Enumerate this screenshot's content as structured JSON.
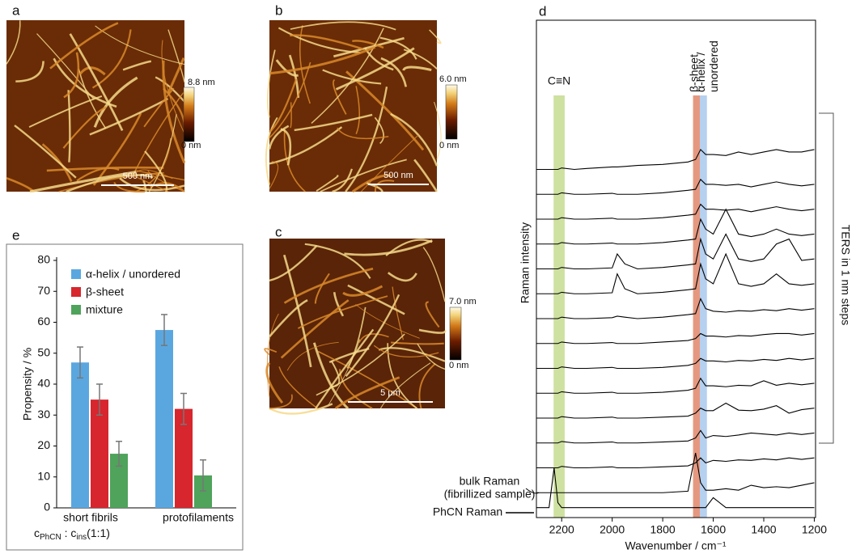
{
  "images": [
    {
      "panel_label": "a",
      "scale_bar": "500 nm",
      "colorbar_max": "8.8 nm",
      "colorbar_min": "0 nm"
    },
    {
      "panel_label": "b",
      "scale_bar": "500 nm",
      "colorbar_max": "6.0 nm",
      "colorbar_min": "0 nm"
    },
    {
      "panel_label": "c",
      "scale_bar": "5 μm",
      "colorbar_max": "7.0 nm",
      "colorbar_min": "0 nm"
    }
  ],
  "chart_data": [
    {
      "type": "bar",
      "panel_label": "e",
      "ylabel": "Propensity / %",
      "categories": [
        "short fibrils",
        "protofilaments"
      ],
      "category_note": [
        "c",
        "PhCN",
        " : c",
        "ins",
        "(1:1)"
      ],
      "ylim": [
        0,
        80
      ],
      "yticks": [
        0,
        10,
        20,
        30,
        40,
        50,
        60,
        70,
        80
      ],
      "series": [
        {
          "name": "α-helix / unordered",
          "color": "#5aa7e0",
          "values": [
            47,
            57.5
          ],
          "errors": [
            5,
            5
          ]
        },
        {
          "name": "β-sheet",
          "color": "#d7262d",
          "values": [
            35,
            32
          ],
          "errors": [
            5,
            5
          ]
        },
        {
          "name": "mixture",
          "color": "#4fa35b",
          "values": [
            17.5,
            10.5
          ],
          "errors": [
            4,
            5
          ]
        }
      ]
    },
    {
      "type": "line",
      "panel_label": "d",
      "xlabel": "Wavenumber / cm⁻¹",
      "ylabel": "Raman intensity",
      "bracket_label": "TERS in 1 nm steps",
      "xlim": [
        2300,
        1195
      ],
      "xticks": [
        2200,
        2000,
        1800,
        1600,
        1400,
        1200
      ],
      "ylim": [
        0,
        100
      ],
      "bands": [
        {
          "label": [
            "C≡N"
          ],
          "from": 2232,
          "to": 2188,
          "color": "#c5dc8f"
        },
        {
          "label": [
            "β-sheet"
          ],
          "from": 1680,
          "to": 1653,
          "color": "#e0866a"
        },
        {
          "label": [
            "α-helix /",
            "unordered"
          ],
          "from": 1653,
          "to": 1625,
          "color": "#a9c8ec"
        }
      ],
      "x": [
        2300,
        2250,
        2230,
        2215,
        2200,
        2150,
        2100,
        2000,
        1980,
        1950,
        1900,
        1800,
        1700,
        1670,
        1650,
        1630,
        1600,
        1550,
        1500,
        1450,
        1400,
        1350,
        1300,
        1250,
        1200
      ],
      "series": [
        {
          "name": "PhCN Raman",
          "color": "#000000",
          "values": [
            2,
            2,
            10,
            3,
            2,
            2,
            2,
            2,
            2,
            2,
            2,
            2,
            2,
            2,
            2,
            2,
            4,
            2,
            2,
            2,
            2,
            2,
            2,
            2,
            2
          ]
        },
        {
          "name": "bulk Raman",
          "note": "(fibrillized sample)",
          "color": "#000000",
          "values": [
            5,
            5,
            5,
            5,
            5,
            5,
            5,
            5,
            5,
            5,
            5,
            5,
            5.3,
            13,
            7,
            5.5,
            5.5,
            5.8,
            5.5,
            6.5,
            6,
            6.2,
            6,
            6.5,
            7
          ]
        },
        {
          "color": "#000000",
          "values": [
            10,
            10,
            10,
            10,
            10.3,
            10,
            10,
            10.2,
            10,
            10,
            10,
            10.2,
            10.4,
            11,
            12,
            11,
            11.5,
            11.3,
            11.6,
            11.5,
            11.8,
            11.6,
            12,
            11.7,
            12
          ]
        },
        {
          "color": "#000000",
          "values": [
            15,
            15,
            15,
            15,
            15.3,
            15,
            15,
            15.2,
            15,
            15,
            15,
            15.2,
            15.4,
            16,
            17.5,
            16,
            16.5,
            16.3,
            16.6,
            17,
            16.8,
            16.6,
            17,
            16.7,
            17
          ]
        },
        {
          "color": "#000000",
          "values": [
            20,
            20,
            20,
            20,
            20.3,
            20,
            20,
            20.2,
            20,
            20,
            20,
            20.2,
            20.4,
            21,
            22,
            21.5,
            21.5,
            23,
            21.6,
            21.5,
            21.8,
            22.5,
            21,
            21.7,
            22
          ]
        },
        {
          "color": "#000000",
          "values": [
            25,
            25,
            25,
            25,
            25.3,
            25,
            25,
            25.2,
            25,
            25,
            25,
            25.2,
            25.6,
            26,
            28,
            26.5,
            26.5,
            26.3,
            26.6,
            26.5,
            27.5,
            26.6,
            27,
            26.7,
            27
          ]
        },
        {
          "color": "#000000",
          "values": [
            30,
            30,
            30,
            30,
            30.3,
            30,
            30,
            30.2,
            30,
            30,
            30,
            30.2,
            30.6,
            31,
            32,
            31.5,
            31.5,
            31.3,
            31.6,
            31.5,
            31.8,
            31.6,
            32,
            31.7,
            32
          ]
        },
        {
          "color": "#000000",
          "values": [
            35,
            35,
            35,
            35,
            35.3,
            35,
            35,
            35.2,
            35,
            35,
            35,
            35.3,
            35.6,
            36,
            37,
            36.5,
            36.5,
            36.3,
            36.6,
            36.5,
            36.8,
            37,
            37,
            36.7,
            37
          ]
        },
        {
          "color": "#000000",
          "values": [
            40,
            40,
            40,
            40,
            40.3,
            40,
            40,
            40.2,
            40.5,
            40.3,
            40,
            40.3,
            40.8,
            41,
            44,
            42,
            41.5,
            41.3,
            41.6,
            41.5,
            41.8,
            41.6,
            42,
            41.7,
            42
          ]
        },
        {
          "color": "#000000",
          "values": [
            45,
            45,
            45,
            45,
            45.3,
            45,
            45,
            45.2,
            49,
            46,
            45,
            45.3,
            45.8,
            46,
            51,
            48,
            47,
            53,
            47,
            46.5,
            47,
            49,
            47,
            46.7,
            47
          ]
        },
        {
          "color": "#000000",
          "values": [
            50,
            50,
            50,
            50,
            50.3,
            50,
            50,
            50.2,
            53,
            51,
            50,
            50.3,
            50.8,
            51,
            56,
            53,
            52,
            57,
            52,
            51.5,
            52,
            55,
            56,
            51.7,
            52
          ]
        },
        {
          "color": "#000000",
          "values": [
            55,
            55,
            55,
            55,
            55.3,
            55,
            55,
            55.2,
            55,
            55,
            55,
            55.3,
            55.8,
            56,
            60,
            58,
            57,
            62,
            57,
            56.5,
            57,
            58,
            57,
            56.7,
            57
          ]
        },
        {
          "color": "#000000",
          "values": [
            60,
            60,
            60,
            60,
            60.3,
            60,
            60,
            60.2,
            60,
            60,
            60,
            60.3,
            60.8,
            61,
            63,
            62,
            62,
            61.8,
            62,
            61.5,
            62,
            62.5,
            62,
            61.7,
            62
          ]
        },
        {
          "color": "#000000",
          "values": [
            65,
            65,
            65,
            65,
            65.3,
            65,
            65,
            65.2,
            65,
            65,
            65,
            65.3,
            65.8,
            66,
            68,
            67,
            67,
            66.8,
            67,
            66.5,
            67,
            67.5,
            67,
            66.7,
            67
          ]
        },
        {
          "color": "#000000",
          "values": [
            70,
            70,
            70,
            70,
            70.3,
            70,
            70.2,
            70.5,
            70.5,
            70.6,
            70.8,
            71,
            71.5,
            72,
            74,
            73,
            73,
            72.8,
            73.5,
            73,
            73.5,
            74,
            73.5,
            73.5,
            74
          ]
        }
      ]
    }
  ]
}
